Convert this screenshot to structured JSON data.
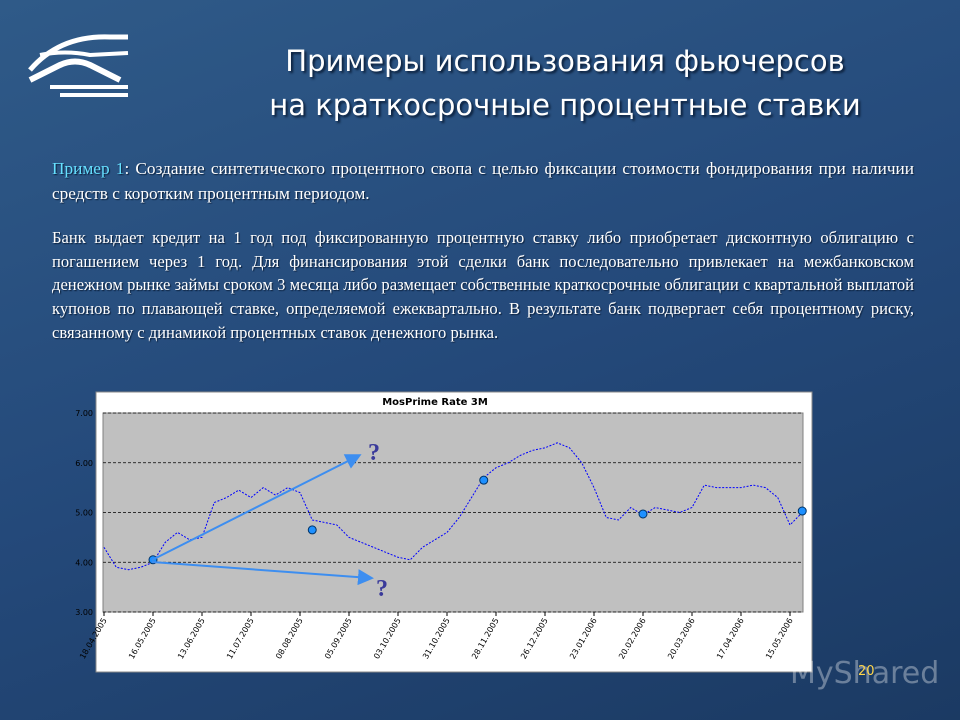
{
  "title": [
    "Примеры использования фьючерсов",
    "на краткосрочные процентные ставки"
  ],
  "example_label": "Пример 1",
  "example_text": ": Создание синтетического процентного свопа с целью фиксации стоимости фондирования при наличии средств с коротким процентным периодом.",
  "paragraph": "Банк выдает кредит на 1 год под фиксированную процентную ставку либо приобретает дисконтную облигацию с погашением через 1 год. Для финансирования этой сделки банк последовательно привлекает на межбанковском денежном рынке займы сроком 3 месяца либо размещает собственные краткосрочные облигации с квартальной выплатой купонов по плавающей ставке, определяемой ежеквартально. В результате банк подвергает себя процентному риску, связанному с динамикой процентных ставок денежного рынка.",
  "page_number": "20",
  "watermark": "MyShared",
  "chart_data": {
    "type": "line",
    "title": "MosPrime Rate 3M",
    "categories": [
      "18.04.2005",
      null,
      null,
      null,
      "16.05.2005",
      null,
      null,
      null,
      "13.06.2005",
      null,
      null,
      null,
      "11.07.2005",
      null,
      null,
      null,
      "08.08.2005",
      null,
      null,
      null,
      "05.09.2005",
      null,
      null,
      null,
      "03.10.2005",
      null,
      null,
      null,
      "31.10.2005",
      null,
      null,
      null,
      "28.11.2005",
      null,
      null,
      null,
      "26.12.2005",
      null,
      null,
      null,
      "23.01.2006",
      null,
      null,
      null,
      "20.02.2006",
      null,
      null,
      null,
      "20.03.2006",
      null,
      null,
      null,
      "17.04.2006",
      null,
      null,
      null,
      "15.05.2006",
      null
    ],
    "series": [
      {
        "color": "#0000ff",
        "values": [
          4.3,
          3.9,
          3.85,
          3.9,
          4.0,
          4.4,
          4.6,
          4.45,
          4.5,
          5.2,
          5.3,
          5.45,
          5.3,
          5.5,
          5.35,
          5.5,
          5.4,
          4.85,
          4.8,
          4.75,
          4.5,
          4.4,
          4.3,
          4.2,
          4.1,
          4.05,
          4.3,
          4.45,
          4.6,
          4.9,
          5.3,
          5.7,
          5.9,
          6.0,
          6.15,
          6.25,
          6.3,
          6.4,
          6.3,
          6.0,
          5.5,
          4.9,
          4.85,
          5.1,
          4.95,
          5.1,
          5.05,
          5.0,
          5.1,
          5.55,
          5.5,
          5.5,
          5.5,
          5.55,
          5.5,
          5.3,
          4.75,
          5.0
        ]
      },
      {
        "color": "#1e90ff",
        "values": [
          null,
          null,
          null,
          null,
          4.05,
          null,
          null,
          null,
          null,
          null,
          null,
          null,
          null,
          null,
          null,
          null,
          null,
          4.65,
          null,
          null,
          null,
          null,
          null,
          null,
          null,
          null,
          null,
          null,
          null,
          null,
          null,
          5.65,
          null,
          null,
          null,
          null,
          null,
          null,
          null,
          null,
          null,
          null,
          null,
          null,
          4.97,
          null,
          null,
          null,
          null,
          null,
          null,
          null,
          null,
          null,
          null,
          null,
          null,
          5.03
        ]
      }
    ],
    "annotations": [
      "?",
      "?"
    ],
    "ylim": [
      3,
      7
    ],
    "yticks": [
      {
        "value": 3,
        "label": "3.00"
      },
      {
        "value": 4,
        "label": "4.00"
      },
      {
        "value": 5,
        "label": "5.00"
      },
      {
        "value": 6,
        "label": "6.00"
      },
      {
        "value": 7,
        "label": "7.00"
      }
    ],
    "grid": true
  }
}
